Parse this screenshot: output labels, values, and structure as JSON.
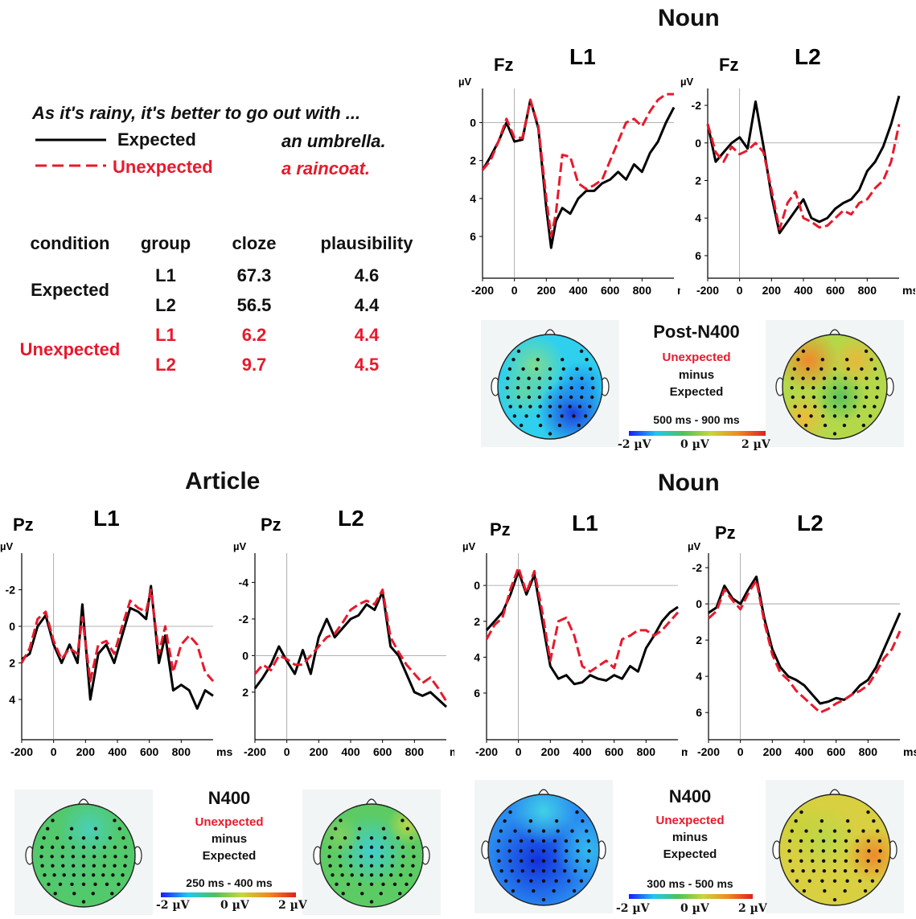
{
  "sentence": {
    "frame": "As it's rainy, it's better to go out with ...",
    "expected_label": "Expected",
    "unexpected_label": "Unexpected",
    "expected_word": "an umbrella.",
    "unexpected_word": "a raincoat."
  },
  "stim_table": {
    "headers": [
      "condition",
      "group",
      "cloze",
      "plausibility"
    ],
    "rows": [
      {
        "condition": "Expected",
        "group": "L1",
        "cloze": "67.3",
        "plausibility": "4.6"
      },
      {
        "condition": "",
        "group": "L2",
        "cloze": "56.5",
        "plausibility": "4.4"
      },
      {
        "condition": "Unexpected",
        "group": "L1",
        "cloze": "6.2",
        "plausibility": "4.4"
      },
      {
        "condition": "",
        "group": "L2",
        "cloze": "9.7",
        "plausibility": "4.5"
      }
    ]
  },
  "titles": {
    "noun_top": "Noun",
    "article": "Article",
    "noun_bottom": "Noun"
  },
  "topo_labels": {
    "post_n400": "Post-N400",
    "n400": "N400",
    "unexpected": "Unexpected",
    "minus": "minus",
    "expected": "Expected",
    "window_post": "500 ms - 900 ms",
    "window_article": "250 ms - 400 ms",
    "window_noun": "300 ms - 500 ms",
    "scale_min": "-2 µV",
    "scale_mid": "0 µV",
    "scale_max": "2 µV"
  },
  "colors": {
    "expected": "#000000",
    "unexpected": "#e8192c"
  },
  "chart_data": [
    {
      "type": "line",
      "panel": "Noun L1 Fz",
      "group": "L1",
      "electrode": "Fz",
      "xlabel": "ms",
      "ylabel": "µV",
      "xlim": [
        -200,
        1000
      ],
      "ylim": [
        -1.8,
        8.2
      ],
      "y_inverted": true,
      "xticks": [
        -200,
        0,
        200,
        400,
        600,
        800
      ],
      "yticks": [
        0,
        2,
        4,
        6
      ],
      "series": [
        {
          "name": "Expected",
          "x": [
            -200,
            -150,
            -100,
            -50,
            0,
            50,
            100,
            150,
            200,
            230,
            260,
            300,
            350,
            400,
            450,
            500,
            550,
            600,
            650,
            700,
            750,
            800,
            850,
            900,
            950,
            1000
          ],
          "values": [
            2.5,
            1.8,
            1.0,
            0.0,
            1.0,
            0.9,
            -1.2,
            0.3,
            4.5,
            6.6,
            5.2,
            4.5,
            4.8,
            4.0,
            3.6,
            3.6,
            3.2,
            3.0,
            2.6,
            3.0,
            2.2,
            2.6,
            1.6,
            1.0,
            0.0,
            -0.8
          ]
        },
        {
          "name": "Unexpected",
          "x": [
            -200,
            -150,
            -100,
            -50,
            0,
            50,
            100,
            150,
            200,
            230,
            260,
            300,
            350,
            400,
            450,
            500,
            550,
            600,
            650,
            700,
            750,
            800,
            850,
            900,
            950,
            1000
          ],
          "values": [
            2.5,
            2.0,
            1.0,
            -0.2,
            0.8,
            0.8,
            -1.2,
            0.2,
            4.0,
            6.0,
            4.8,
            1.7,
            1.8,
            3.2,
            3.5,
            3.3,
            3.0,
            2.0,
            1.0,
            0.0,
            -0.2,
            0.2,
            -0.6,
            -1.2,
            -1.5,
            -1.5
          ]
        }
      ]
    },
    {
      "type": "line",
      "panel": "Noun L2 Fz",
      "group": "L2",
      "electrode": "Fz",
      "xlabel": "ms",
      "ylabel": "µV",
      "xlim": [
        -200,
        1000
      ],
      "ylim": [
        -2.9,
        7.2
      ],
      "y_inverted": true,
      "xticks": [
        -200,
        0,
        200,
        400,
        600,
        800
      ],
      "yticks": [
        -2,
        0,
        2,
        4,
        6
      ],
      "series": [
        {
          "name": "Expected",
          "x": [
            -200,
            -150,
            -100,
            -50,
            0,
            50,
            100,
            150,
            200,
            250,
            300,
            350,
            400,
            450,
            500,
            550,
            600,
            650,
            700,
            750,
            800,
            850,
            900,
            950,
            1000
          ],
          "values": [
            -1.0,
            1.0,
            0.5,
            0.0,
            -0.3,
            0.3,
            -2.2,
            0.2,
            2.8,
            4.8,
            4.2,
            3.6,
            3.0,
            4.0,
            4.2,
            4.0,
            3.5,
            3.2,
            3.0,
            2.5,
            1.5,
            1.0,
            0.2,
            -1.0,
            -2.5
          ]
        },
        {
          "name": "Unexpected",
          "x": [
            -200,
            -150,
            -100,
            -50,
            0,
            50,
            100,
            150,
            200,
            250,
            300,
            350,
            400,
            450,
            500,
            550,
            600,
            650,
            700,
            750,
            800,
            850,
            900,
            950,
            1000
          ],
          "values": [
            -1.0,
            0.5,
            1.0,
            0.2,
            0.6,
            0.4,
            0.0,
            0.5,
            2.5,
            4.6,
            3.2,
            2.6,
            4.0,
            4.2,
            4.5,
            4.4,
            4.0,
            3.6,
            3.8,
            3.2,
            3.0,
            2.4,
            2.0,
            1.0,
            -1.0
          ]
        }
      ]
    },
    {
      "type": "line",
      "panel": "Article L1 Pz",
      "group": "L1",
      "electrode": "Pz",
      "xlabel": "ms",
      "ylabel": "µV",
      "xlim": [
        -200,
        1000
      ],
      "ylim": [
        -4.0,
        6.2
      ],
      "y_inverted": true,
      "xticks": [
        -200,
        0,
        200,
        400,
        600,
        800
      ],
      "yticks": [
        -2,
        0,
        2,
        4
      ],
      "series": [
        {
          "name": "Expected",
          "x": [
            -200,
            -150,
            -100,
            -50,
            0,
            50,
            100,
            150,
            180,
            230,
            280,
            330,
            380,
            430,
            480,
            530,
            580,
            610,
            660,
            700,
            750,
            800,
            850,
            900,
            950,
            1000
          ],
          "values": [
            1.8,
            1.5,
            0.0,
            -0.6,
            1.0,
            2.0,
            1.0,
            2.0,
            -1.2,
            4.0,
            1.5,
            1.0,
            2.0,
            0.5,
            -1.0,
            -0.8,
            -0.4,
            -2.2,
            2.0,
            0.5,
            3.5,
            3.2,
            3.5,
            4.5,
            3.5,
            3.8
          ]
        },
        {
          "name": "Unexpected",
          "x": [
            -200,
            -150,
            -100,
            -50,
            0,
            50,
            100,
            150,
            180,
            230,
            280,
            330,
            380,
            430,
            480,
            530,
            580,
            610,
            660,
            700,
            750,
            800,
            850,
            900,
            950,
            1000
          ],
          "values": [
            2.0,
            1.2,
            -0.4,
            -0.8,
            0.8,
            1.8,
            1.2,
            1.5,
            -0.5,
            3.0,
            1.0,
            0.8,
            1.5,
            0.0,
            -1.4,
            -1.0,
            -0.8,
            -2.0,
            1.5,
            0.0,
            2.5,
            1.0,
            0.5,
            1.0,
            2.5,
            3.0
          ]
        }
      ]
    },
    {
      "type": "line",
      "panel": "Article L2 Pz",
      "group": "L2",
      "electrode": "Pz",
      "xlabel": "ms",
      "ylabel": "µV",
      "xlim": [
        -200,
        1000
      ],
      "ylim": [
        -5.6,
        4.6
      ],
      "y_inverted": true,
      "xticks": [
        -200,
        0,
        200,
        400,
        600,
        800
      ],
      "yticks": [
        -4,
        -2,
        0,
        2
      ],
      "series": [
        {
          "name": "Expected",
          "x": [
            -200,
            -150,
            -100,
            -50,
            0,
            50,
            100,
            150,
            200,
            250,
            300,
            350,
            400,
            450,
            500,
            550,
            600,
            650,
            700,
            750,
            800,
            850,
            900,
            950,
            1000
          ],
          "values": [
            1.8,
            1.2,
            0.5,
            -0.5,
            0.3,
            1.0,
            -0.3,
            1.0,
            -1.0,
            -2.0,
            -1.0,
            -1.5,
            -2.0,
            -2.2,
            -2.8,
            -2.5,
            -3.5,
            -0.5,
            0.0,
            1.0,
            2.0,
            2.2,
            2.0,
            2.4,
            2.8
          ]
        },
        {
          "name": "Unexpected",
          "x": [
            -200,
            -150,
            -100,
            -50,
            0,
            50,
            100,
            150,
            200,
            250,
            300,
            350,
            400,
            450,
            500,
            550,
            600,
            650,
            700,
            750,
            800,
            850,
            900,
            950,
            1000
          ],
          "values": [
            1.0,
            0.5,
            0.8,
            0.0,
            0.2,
            0.5,
            0.5,
            0.0,
            -0.5,
            -1.0,
            -1.2,
            -1.8,
            -2.5,
            -2.8,
            -3.0,
            -2.8,
            -3.6,
            -1.0,
            -0.2,
            0.5,
            1.0,
            1.5,
            1.2,
            1.8,
            2.5
          ]
        }
      ]
    },
    {
      "type": "line",
      "panel": "Noun L1 Pz",
      "group": "L1",
      "electrode": "Pz",
      "xlabel": "ms",
      "ylabel": "µV",
      "xlim": [
        -200,
        1000
      ],
      "ylim": [
        -1.8,
        8.6
      ],
      "y_inverted": true,
      "xticks": [
        -200,
        0,
        200,
        400,
        600,
        800
      ],
      "yticks": [
        0,
        2,
        4,
        6
      ],
      "series": [
        {
          "name": "Expected",
          "x": [
            -200,
            -150,
            -100,
            -50,
            0,
            50,
            100,
            150,
            200,
            250,
            300,
            350,
            400,
            450,
            500,
            550,
            600,
            650,
            700,
            750,
            800,
            850,
            900,
            950,
            1000
          ],
          "values": [
            2.5,
            2.0,
            1.5,
            0.5,
            -0.8,
            0.5,
            -0.6,
            2.0,
            4.5,
            5.2,
            5.0,
            5.5,
            5.4,
            5.0,
            5.2,
            5.3,
            5.0,
            5.2,
            4.5,
            4.8,
            3.5,
            2.8,
            2.0,
            1.5,
            1.2
          ]
        },
        {
          "name": "Unexpected",
          "x": [
            -200,
            -150,
            -100,
            -50,
            0,
            50,
            100,
            150,
            200,
            250,
            300,
            350,
            400,
            450,
            500,
            550,
            600,
            650,
            700,
            750,
            800,
            850,
            900,
            950,
            1000
          ],
          "values": [
            3.0,
            2.2,
            1.8,
            0.2,
            -1.0,
            0.4,
            -0.8,
            1.5,
            4.2,
            2.0,
            1.8,
            2.8,
            4.5,
            4.8,
            4.5,
            4.2,
            4.6,
            3.0,
            2.8,
            2.5,
            2.5,
            2.8,
            2.5,
            2.0,
            1.5
          ]
        }
      ]
    },
    {
      "type": "line",
      "panel": "Noun L2 Pz",
      "group": "L2",
      "electrode": "Pz",
      "xlabel": "ms",
      "ylabel": "µV",
      "xlim": [
        -200,
        1000
      ],
      "ylim": [
        -2.8,
        7.5
      ],
      "y_inverted": true,
      "xticks": [
        -200,
        0,
        200,
        400,
        600,
        800
      ],
      "yticks": [
        -2,
        0,
        2,
        4,
        6
      ],
      "series": [
        {
          "name": "Expected",
          "x": [
            -200,
            -150,
            -100,
            -50,
            0,
            50,
            100,
            150,
            200,
            250,
            300,
            350,
            400,
            450,
            500,
            550,
            600,
            650,
            700,
            750,
            800,
            850,
            900,
            950,
            1000
          ],
          "values": [
            0.5,
            0.2,
            -1.0,
            -0.3,
            0.0,
            -0.8,
            -1.5,
            0.8,
            2.5,
            3.5,
            4.0,
            4.2,
            4.5,
            5.0,
            5.5,
            5.4,
            5.2,
            5.3,
            5.0,
            4.5,
            4.2,
            3.5,
            2.5,
            1.5,
            0.5
          ]
        },
        {
          "name": "Unexpected",
          "x": [
            -200,
            -150,
            -100,
            -50,
            0,
            50,
            100,
            150,
            200,
            250,
            300,
            350,
            400,
            450,
            500,
            550,
            600,
            650,
            700,
            750,
            800,
            850,
            900,
            950,
            1000
          ],
          "values": [
            0.8,
            0.4,
            -0.8,
            -0.2,
            0.3,
            -0.6,
            -1.3,
            1.0,
            2.8,
            3.8,
            4.2,
            4.8,
            5.2,
            5.6,
            6.0,
            5.8,
            5.5,
            5.3,
            5.0,
            4.8,
            4.5,
            3.8,
            3.0,
            2.5,
            1.5
          ]
        }
      ]
    }
  ]
}
